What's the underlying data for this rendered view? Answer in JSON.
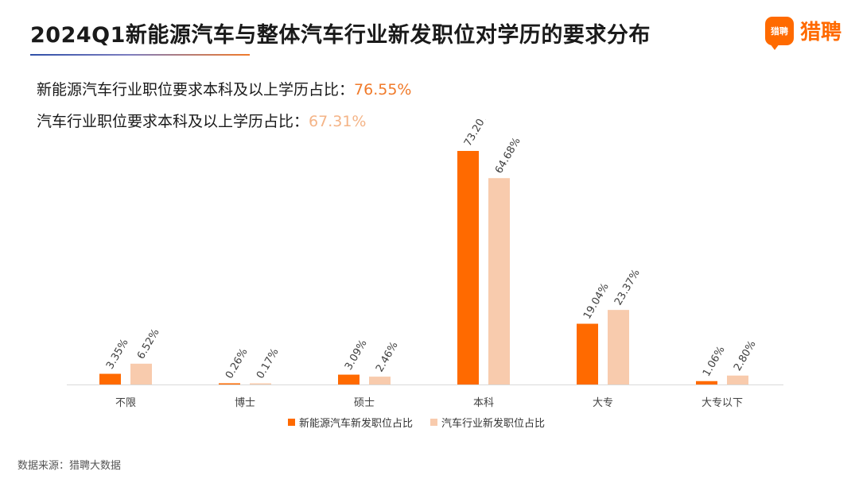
{
  "header": {
    "title": "2024Q1新能源汽车与整体汽车行业新发职位对学历的要求分布",
    "brand": "猎聘",
    "brand_mark": "猎聘"
  },
  "stats": [
    {
      "label": "新能源汽车行业职位要求本科及以上学历占比：",
      "value": "76.55%"
    },
    {
      "label": "汽车行业职位要求本科及以上学历占比：",
      "value": "67.31%"
    }
  ],
  "colors": {
    "series1": "#ff6a00",
    "series2": "#f8cbad",
    "accent": "#f07a2a"
  },
  "chart_data": {
    "type": "bar",
    "categories": [
      "不限",
      "博士",
      "硕士",
      "本科",
      "大专",
      "大专以下"
    ],
    "series": [
      {
        "name": "新能源汽车新发职位占比",
        "values": [
          3.35,
          0.26,
          3.09,
          73.2,
          19.04,
          1.06
        ],
        "labels": [
          "3.35%",
          "0.26%",
          "3.09%",
          "73.20%",
          "19.04%",
          "1.06%"
        ]
      },
      {
        "name": "汽车行业新发职位占比",
        "values": [
          6.52,
          0.17,
          2.46,
          64.68,
          23.37,
          2.8
        ],
        "labels": [
          "6.52%",
          "0.17%",
          "2.46%",
          "64.68%",
          "23.37%",
          "2.80%"
        ]
      }
    ],
    "ylim": [
      0,
      73.2
    ],
    "grid": false,
    "legend": "bottom"
  },
  "footer": {
    "source": "数据来源：猎聘大数据"
  }
}
